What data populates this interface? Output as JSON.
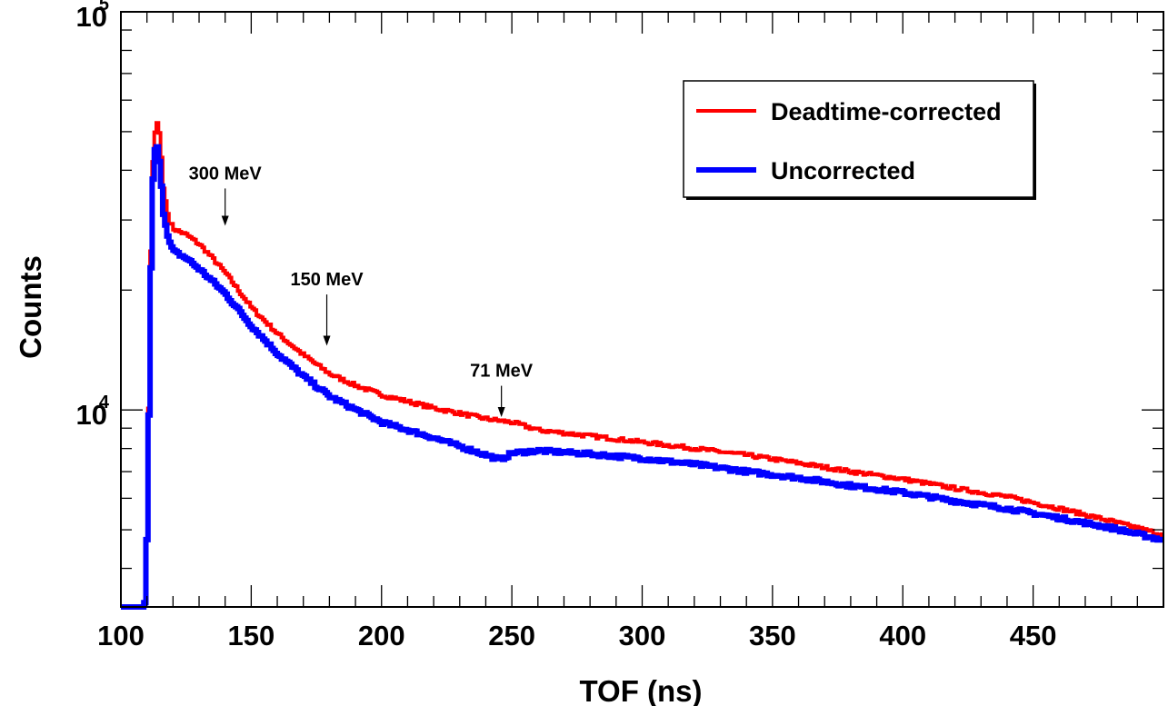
{
  "chart_data": {
    "type": "line",
    "title": "",
    "xlabel": "TOF (ns)",
    "ylabel": "Counts",
    "xlim": [
      100,
      500
    ],
    "ylim": [
      3200,
      100000
    ],
    "yscale": "log",
    "grid": false,
    "legend": "top-right",
    "x_ticks": [
      100,
      150,
      200,
      250,
      300,
      350,
      400,
      450
    ],
    "x_tick_labels": [
      "100",
      "150",
      "200",
      "250",
      "300",
      "350",
      "400",
      "450"
    ],
    "y_tick_labels": [
      {
        "value": 10000,
        "base": "10",
        "exp": "4"
      },
      {
        "value": 100000,
        "base": "10",
        "exp": "5"
      }
    ],
    "series": [
      {
        "name": "Deadtime-corrected",
        "color": "#ff0000",
        "x": [
          100,
          108,
          109,
          110,
          111,
          112,
          113,
          114,
          115,
          116,
          118,
          120,
          125,
          130,
          135,
          140,
          150,
          160,
          170,
          180,
          190,
          200,
          220,
          240,
          250,
          260,
          280,
          300,
          320,
          340,
          360,
          380,
          400,
          420,
          440,
          460,
          480,
          500
        ],
        "y": [
          3200,
          3200,
          3300,
          6000,
          22000,
          42000,
          52000,
          53000,
          45000,
          36000,
          30000,
          28500,
          27500,
          26000,
          24000,
          22000,
          18000,
          15500,
          13700,
          12300,
          11500,
          10900,
          10100,
          9500,
          9300,
          8900,
          8600,
          8300,
          8000,
          7700,
          7350,
          7000,
          6700,
          6350,
          6050,
          5650,
          5250,
          4850
        ]
      },
      {
        "name": "Uncorrected",
        "color": "#0000ff",
        "x": [
          100,
          108,
          109,
          110,
          111,
          112,
          113,
          114,
          115,
          116,
          118,
          120,
          125,
          130,
          135,
          140,
          150,
          160,
          170,
          180,
          190,
          200,
          220,
          240,
          245,
          250,
          260,
          280,
          300,
          320,
          340,
          360,
          380,
          400,
          420,
          440,
          460,
          480,
          500
        ],
        "y": [
          3200,
          3200,
          3300,
          6000,
          20000,
          38000,
          47000,
          45000,
          38000,
          31000,
          26500,
          25000,
          24000,
          22500,
          21000,
          19500,
          16200,
          13800,
          12100,
          10800,
          10000,
          9300,
          8500,
          7700,
          7500,
          7800,
          7900,
          7750,
          7550,
          7300,
          7000,
          6750,
          6450,
          6200,
          5900,
          5650,
          5350,
          5050,
          4700
        ]
      }
    ],
    "annotations": [
      {
        "label": "300 MeV",
        "x": 140,
        "y_top": 36000,
        "y_tip": 29000
      },
      {
        "label": "150 MeV",
        "x": 179,
        "y_top": 19500,
        "y_tip": 14500
      },
      {
        "label": "71 MeV",
        "x": 246,
        "y_top": 11500,
        "y_tip": 9600
      }
    ]
  }
}
